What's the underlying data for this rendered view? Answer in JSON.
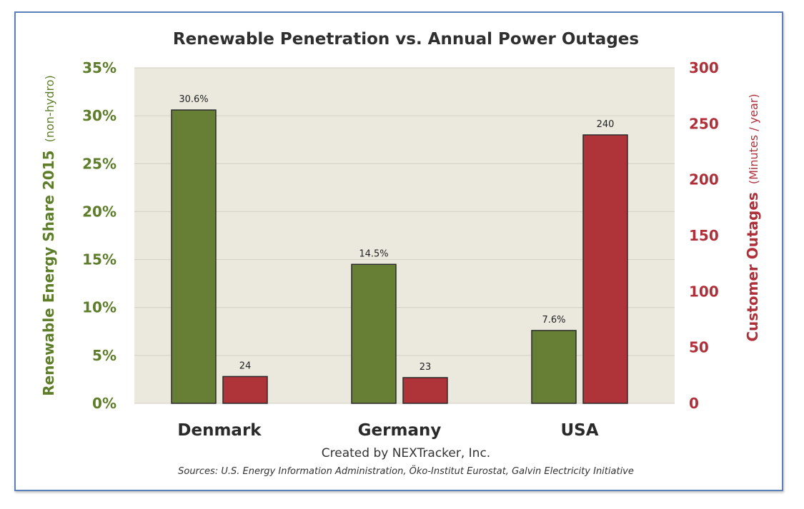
{
  "chart_data": {
    "type": "bar",
    "title": "Renewable Penetration vs. Annual Power Outages",
    "categories": [
      "Denmark",
      "Germany",
      "USA"
    ],
    "y_left": {
      "label_main": "Renewable Energy Share 2015",
      "label_sub": "(non-hydro)",
      "ylim": [
        0,
        35
      ],
      "ticks": [
        "0%",
        "5%",
        "10%",
        "15%",
        "20%",
        "25%",
        "30%",
        "35%"
      ],
      "color": "#5e7d2a"
    },
    "y_right": {
      "label_main": "Customer Outages",
      "label_sub": "(Minutes / year)",
      "ylim": [
        0,
        300
      ],
      "ticks": [
        "0",
        "50",
        "100",
        "150",
        "200",
        "250",
        "300"
      ],
      "color": "#b0303a"
    },
    "series": [
      {
        "values": [
          30.6,
          14.5,
          7.6
        ],
        "labels": [
          "30.6%",
          "14.5%",
          "7.6%"
        ],
        "axis": "left",
        "color": "#667f34"
      },
      {
        "values": [
          24,
          23,
          240
        ],
        "labels": [
          "24",
          "23",
          "240"
        ],
        "axis": "right",
        "color": "#ae3439"
      }
    ],
    "grid": true,
    "plot_background": "#ebe9de"
  },
  "footer": {
    "credit": "Created by NEXTracker, Inc.",
    "sources": "Sources: U.S. Energy Information Administration,  Öko-Institut Eurostat, Galvin Electricity Initiative"
  }
}
